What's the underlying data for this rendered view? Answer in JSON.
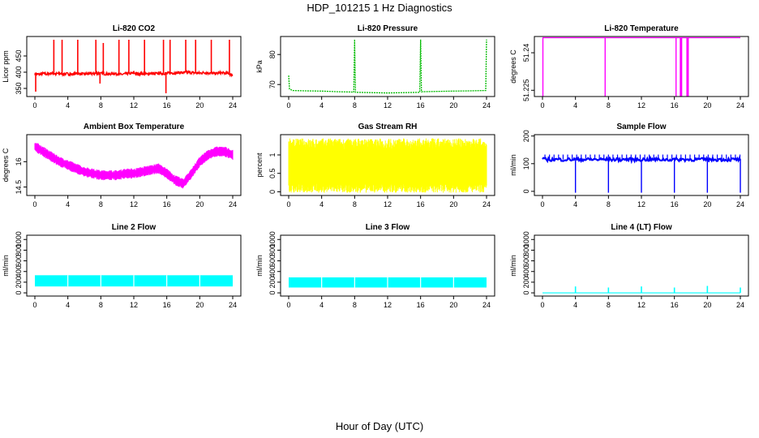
{
  "title": "HDP_101215  1 Hz Diagnostics",
  "x_axis_title": "Hour of Day (UTC)",
  "chart_data": [
    {
      "type": "line",
      "title": "Li-820 CO2",
      "ylabel": "Licor ppm",
      "color": "#ff0000",
      "xlim": [
        0,
        24
      ],
      "ylim": [
        325,
        510
      ],
      "x_ticks": [
        0,
        4,
        8,
        12,
        16,
        20,
        24
      ],
      "y_ticks": [
        350,
        400,
        450
      ],
      "series": [
        {
          "x": [
            0,
            0.5,
            1,
            1.5,
            2,
            2.5,
            3,
            3.5,
            4,
            4.5,
            5,
            5.5,
            6,
            6.5,
            7,
            7.5,
            8,
            8.5,
            9,
            9.5,
            10,
            10.5,
            11,
            11.5,
            12,
            12.5,
            13,
            13.5,
            14,
            14.5,
            15,
            15.5,
            16,
            16.5,
            17,
            17.5,
            18,
            18.5,
            19,
            19.5,
            20,
            20.5,
            21,
            21.5,
            22,
            22.5,
            23,
            23.5,
            24
          ],
          "y": [
            395,
            393,
            396,
            394,
            397,
            395,
            396,
            394,
            395,
            393,
            396,
            395,
            394,
            396,
            395,
            397,
            396,
            395,
            394,
            396,
            395,
            393,
            395,
            396,
            397,
            395,
            396,
            394,
            396,
            395,
            397,
            396,
            396,
            398,
            397,
            399,
            398,
            400,
            399,
            398,
            397,
            399,
            398,
            397,
            396,
            398,
            397,
            396,
            390
          ],
          "spikes": [
            {
              "x": 2.3,
              "y": 500
            },
            {
              "x": 3.3,
              "y": 500
            },
            {
              "x": 5.2,
              "y": 500
            },
            {
              "x": 7.4,
              "y": 500
            },
            {
              "x": 8.3,
              "y": 490
            },
            {
              "x": 10.2,
              "y": 500
            },
            {
              "x": 11.4,
              "y": 500
            },
            {
              "x": 13.3,
              "y": 500
            },
            {
              "x": 15.6,
              "y": 500
            },
            {
              "x": 16.4,
              "y": 500
            },
            {
              "x": 18.3,
              "y": 500
            },
            {
              "x": 19.5,
              "y": 500
            },
            {
              "x": 21.4,
              "y": 500
            },
            {
              "x": 23.6,
              "y": 500
            }
          ],
          "dips": [
            {
              "x": 0.1,
              "y": 340
            },
            {
              "x": 7.9,
              "y": 365
            },
            {
              "x": 15.9,
              "y": 335
            }
          ]
        }
      ]
    },
    {
      "type": "line",
      "title": "Li-820 Pressure",
      "ylabel": "kPa",
      "color": "#00bb00",
      "xlim": [
        0,
        24
      ],
      "ylim": [
        66,
        86
      ],
      "x_ticks": [
        0,
        4,
        8,
        12,
        16,
        20,
        24
      ],
      "y_ticks": [
        70,
        80
      ],
      "series": [
        {
          "x": [
            0,
            0.1,
            0.5,
            2,
            4,
            6,
            7.9,
            8,
            8.1,
            10,
            12,
            14,
            15.9,
            16,
            16.1,
            18,
            20,
            22,
            23.9,
            24
          ],
          "y": [
            73,
            68.5,
            68,
            67.9,
            67.8,
            67.6,
            67.5,
            85,
            67.4,
            67.3,
            67.2,
            67.3,
            67.4,
            85,
            67.6,
            67.7,
            67.8,
            67.9,
            68,
            85
          ]
        }
      ]
    },
    {
      "type": "line",
      "title": "Li-820 Temperature",
      "ylabel": "degrees C",
      "color": "#ff00ff",
      "xlim": [
        0,
        24
      ],
      "ylim": [
        51.2225,
        51.2465
      ],
      "x_ticks": [
        0,
        4,
        8,
        12,
        16,
        20,
        24
      ],
      "y_ticks": [
        51.225,
        51.24
      ],
      "series": [
        {
          "x": [
            0,
            24
          ],
          "y": [
            51.246,
            51.246
          ],
          "drops": [
            0.05,
            7.6,
            16.2,
            16.8,
            17.6
          ],
          "drop_to": 51.2225
        }
      ]
    },
    {
      "type": "line",
      "title": "Ambient Box Temperature",
      "ylabel": "degrees C",
      "color": "#ff00ff",
      "xlim": [
        0,
        24
      ],
      "ylim": [
        14.0,
        17.6
      ],
      "x_ticks": [
        0,
        4,
        8,
        12,
        16,
        20,
        24
      ],
      "y_ticks": [
        14.5,
        16.0
      ],
      "band": 0.5,
      "series": [
        {
          "x": [
            0,
            1,
            2,
            3,
            4,
            5,
            6,
            7,
            8,
            9,
            10,
            11,
            12,
            13,
            14,
            15,
            16,
            17,
            18,
            19,
            20,
            21,
            22,
            23,
            24
          ],
          "y": [
            16.9,
            16.6,
            16.3,
            16.0,
            15.8,
            15.6,
            15.4,
            15.3,
            15.2,
            15.2,
            15.2,
            15.3,
            15.3,
            15.4,
            15.5,
            15.6,
            15.3,
            14.9,
            14.7,
            15.3,
            16.0,
            16.4,
            16.6,
            16.6,
            16.4
          ]
        }
      ]
    },
    {
      "type": "line",
      "title": "Gas Stream RH",
      "ylabel": "percent",
      "color": "#ffff00",
      "xlim": [
        0,
        24
      ],
      "ylim": [
        -0.1,
        1.55
      ],
      "x_ticks": [
        0,
        4,
        8,
        12,
        16,
        20,
        24
      ],
      "y_ticks": [
        0.0,
        0.5,
        1.0
      ],
      "band_low": 0.1,
      "band_high": 1.3,
      "series": [
        {
          "x": [
            0,
            4,
            8,
            12,
            16,
            20,
            24
          ],
          "y": [
            0.7,
            0.7,
            0.7,
            0.7,
            0.7,
            0.7,
            0.7
          ]
        }
      ]
    },
    {
      "type": "line",
      "title": "Sample Flow",
      "ylabel": "ml/min",
      "color": "#0000ff",
      "xlim": [
        0,
        24
      ],
      "ylim": [
        -15,
        205
      ],
      "x_ticks": [
        0,
        4,
        8,
        12,
        16,
        20,
        24
      ],
      "y_ticks": [
        0,
        100,
        200
      ],
      "series": [
        {
          "x": [
            0,
            24
          ],
          "y": [
            115,
            115
          ],
          "drops": [
            4.0,
            8.0,
            12.0,
            16.0,
            20.0,
            24.0
          ],
          "drop_to": -5
        }
      ]
    },
    {
      "type": "line",
      "title": "Line 2 Flow",
      "ylabel": "ml/min",
      "color": "#00ffff",
      "xlim": [
        0,
        24
      ],
      "ylim": [
        -60,
        1080
      ],
      "x_ticks": [
        0,
        4,
        8,
        12,
        16,
        20,
        24
      ],
      "y_ticks": [
        0,
        200,
        400,
        600,
        800,
        1000
      ],
      "band_low": 120,
      "band_high": 330,
      "series": [
        {
          "x": [
            0,
            24
          ],
          "y": [
            225,
            225
          ],
          "gaps": [
            4.0,
            8.0,
            12.0,
            16.0,
            20.0
          ]
        }
      ]
    },
    {
      "type": "line",
      "title": "Line 3 Flow",
      "ylabel": "ml/min",
      "color": "#00ffff",
      "xlim": [
        0,
        24
      ],
      "ylim": [
        -60,
        1080
      ],
      "x_ticks": [
        0,
        4,
        8,
        12,
        16,
        20,
        24
      ],
      "y_ticks": [
        0,
        200,
        400,
        600,
        800,
        1000
      ],
      "band_low": 100,
      "band_high": 290,
      "series": [
        {
          "x": [
            0,
            24
          ],
          "y": [
            195,
            195
          ],
          "gaps": [
            4.0,
            8.0,
            12.0,
            16.0,
            20.0
          ]
        }
      ]
    },
    {
      "type": "line",
      "title": "Line 4 (LT) Flow",
      "ylabel": "ml/min",
      "color": "#00ffff",
      "xlim": [
        0,
        24
      ],
      "ylim": [
        -60,
        1080
      ],
      "x_ticks": [
        0,
        4,
        8,
        12,
        16,
        20,
        24
      ],
      "y_ticks": [
        0,
        200,
        400,
        600,
        800,
        1000
      ],
      "series": [
        {
          "x": [
            0,
            24
          ],
          "y": [
            0,
            0
          ],
          "spikes": [
            {
              "x": 4.0,
              "y": 120
            },
            {
              "x": 8.0,
              "y": 100
            },
            {
              "x": 12.0,
              "y": 120
            },
            {
              "x": 16.0,
              "y": 100
            },
            {
              "x": 20.0,
              "y": 130
            },
            {
              "x": 24.0,
              "y": 100
            }
          ]
        }
      ]
    }
  ]
}
